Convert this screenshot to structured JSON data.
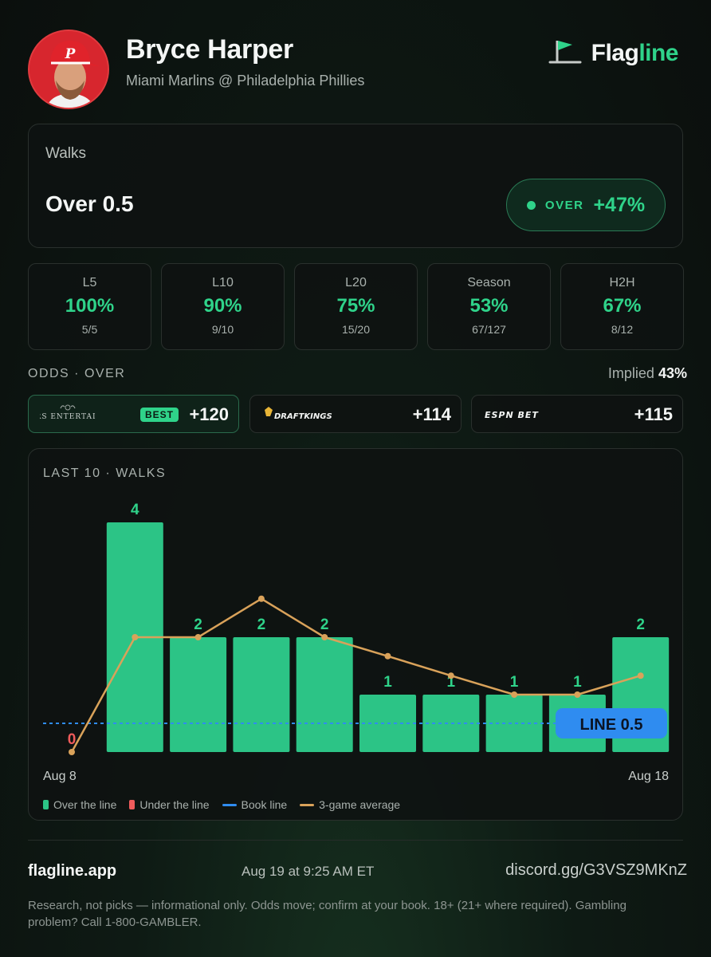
{
  "player": {
    "name": "Bryce Harper",
    "matchup": "Miami Marlins @ Philadelphia Phillies"
  },
  "brand": {
    "name_prefix": "Flag",
    "name_suffix": "line",
    "icon": "flag-icon"
  },
  "prop": {
    "market": "Walks",
    "line_text": "Over 0.5",
    "edge_label": "OVER",
    "edge_value": "+47%"
  },
  "stats": [
    {
      "label": "L5",
      "pct": "100%",
      "frac": "5/5"
    },
    {
      "label": "L10",
      "pct": "90%",
      "frac": "9/10"
    },
    {
      "label": "L20",
      "pct": "75%",
      "frac": "15/20"
    },
    {
      "label": "Season",
      "pct": "53%",
      "frac": "67/127"
    },
    {
      "label": "H2H",
      "pct": "67%",
      "frac": "8/12"
    }
  ],
  "odds": {
    "title": "ODDS · OVER",
    "implied_label": "Implied",
    "implied_value": "43%",
    "books": [
      {
        "name": "CAESARS ENTERTAINMENT",
        "price": "+120",
        "best": "BEST"
      },
      {
        "name": "DRAFTKINGS",
        "price": "+114"
      },
      {
        "name": "ESPN BET",
        "price": "+115"
      }
    ]
  },
  "chart_data": {
    "type": "bar",
    "title": "LAST 10 · WALKS",
    "values": [
      0,
      4,
      2,
      2,
      2,
      1,
      1,
      1,
      1,
      2
    ],
    "rolling_avg": [
      0,
      2,
      2,
      2.67,
      2,
      1.67,
      1.33,
      1,
      1,
      1.33
    ],
    "line": 0.5,
    "line_label": "LINE 0.5",
    "x_start_label": "Aug 8",
    "x_end_label": "Aug 18",
    "ylim": [
      0,
      4
    ],
    "legend": [
      "Over the line",
      "Under the line",
      "Book line",
      "3-game average"
    ],
    "colors": {
      "over": "#2cc486",
      "over_text": "#2fd38a",
      "under": "#ef5b5b",
      "book_line": "#2f8cf0",
      "avg": "#d9a25a"
    }
  },
  "footer": {
    "site": "flagline.app",
    "timestamp": "Aug 19 at 9:25 AM ET",
    "discord": "discord.gg/G3VSZ9MKnZ",
    "disclaimer": "Research, not picks — informational only. Odds move; confirm at your book. 18+ (21+ where required). Gambling problem? Call 1-800-GAMBLER."
  }
}
